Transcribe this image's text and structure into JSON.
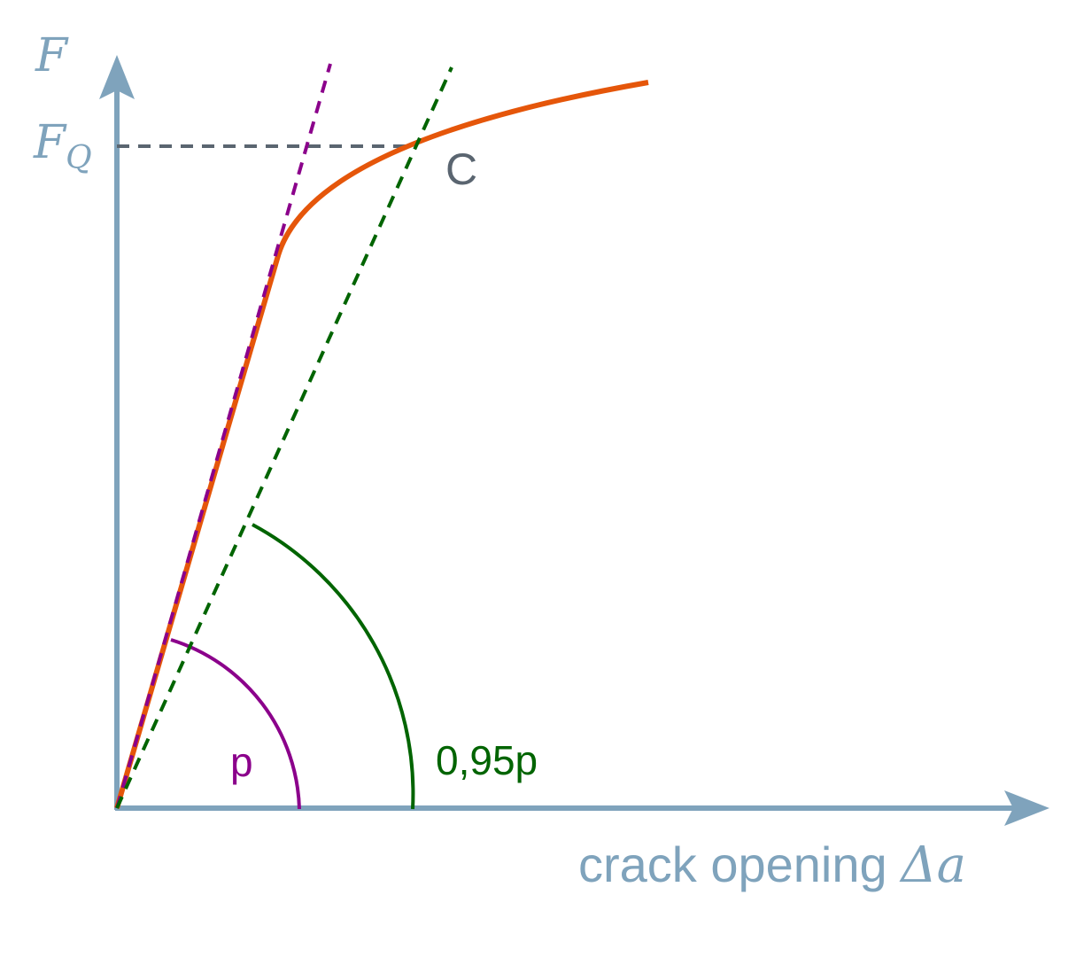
{
  "labels": {
    "y_axis": "F",
    "fq_main": "F",
    "fq_sub": "Q",
    "point": "C",
    "angle_p": "p",
    "angle_095p": "0,95p",
    "x_axis_text": "crack opening ",
    "x_axis_delta": "Δ",
    "x_axis_var": "a"
  },
  "colors": {
    "axis": "#7fa3bc",
    "curve": "#e5560a",
    "tangent": "#8b008b",
    "secant": "#006400",
    "guide": "#5a6570"
  }
}
